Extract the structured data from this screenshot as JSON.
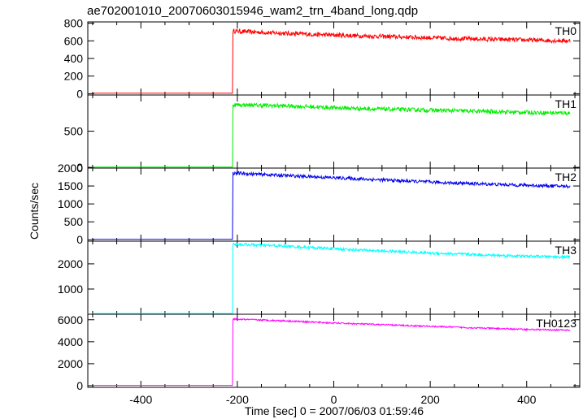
{
  "chart_data": {
    "type": "line",
    "title": "ae702001010_20070603015946_wam2_trn_4band_long.qdp",
    "xlabel": "Time [sec] 0 = 2007/06/03 01:59:46",
    "ylabel": "Counts/sec",
    "xlim": [
      -510,
      510
    ],
    "x_ticks": [
      -400,
      -200,
      0,
      200,
      400
    ],
    "grid": false,
    "legend": "none",
    "series": [
      {
        "name": "TH0",
        "color": "#ff0000",
        "ylim": [
          -15,
          815
        ],
        "y_ticks": [
          0,
          200,
          400,
          600,
          800
        ],
        "pre_level": 5,
        "onset_x": -210,
        "segments": [
          [
            -205,
            710
          ],
          [
            -100,
            685
          ],
          [
            0,
            665
          ],
          [
            100,
            650
          ],
          [
            200,
            635
          ],
          [
            300,
            620
          ],
          [
            400,
            610
          ],
          [
            490,
            600
          ]
        ],
        "noise": 25
      },
      {
        "name": "TH1",
        "color": "#00ee00",
        "ylim": [
          -10,
          1000
        ],
        "y_ticks": [
          0,
          500
        ],
        "y_ticks_extra": [],
        "pre_level": 5,
        "onset_x": -210,
        "segments": [
          [
            -205,
            865
          ],
          [
            -100,
            850
          ],
          [
            0,
            825
          ],
          [
            100,
            805
          ],
          [
            200,
            790
          ],
          [
            300,
            775
          ],
          [
            400,
            760
          ],
          [
            490,
            750
          ]
        ],
        "noise": 28
      },
      {
        "name": "TH2",
        "color": "#0000ee",
        "ylim": [
          -40,
          2000
        ],
        "y_ticks": [
          0,
          500,
          1000,
          1500,
          2000
        ],
        "pre_level": 10,
        "onset_x": -210,
        "segments": [
          [
            -205,
            1860
          ],
          [
            -100,
            1790
          ],
          [
            0,
            1730
          ],
          [
            100,
            1670
          ],
          [
            200,
            1610
          ],
          [
            300,
            1560
          ],
          [
            400,
            1520
          ],
          [
            490,
            1490
          ]
        ],
        "noise": 45
      },
      {
        "name": "TH3",
        "color": "#00ffff",
        "ylim": [
          0,
          2900
        ],
        "y_ticks": [
          1000,
          2000
        ],
        "pre_level": 30,
        "onset_x": -210,
        "segments": [
          [
            -205,
            2780
          ],
          [
            -100,
            2700
          ],
          [
            0,
            2600
          ],
          [
            100,
            2510
          ],
          [
            200,
            2430
          ],
          [
            300,
            2360
          ],
          [
            400,
            2300
          ],
          [
            490,
            2270
          ]
        ],
        "noise": 55
      },
      {
        "name": "TH0123",
        "color": "#ff00ff",
        "ylim": [
          -150,
          6500
        ],
        "y_ticks": [
          0,
          2000,
          4000,
          6000
        ],
        "pre_level": 30,
        "onset_x": -210,
        "segments": [
          [
            -205,
            6050
          ],
          [
            -100,
            5900
          ],
          [
            0,
            5700
          ],
          [
            100,
            5550
          ],
          [
            200,
            5400
          ],
          [
            300,
            5250
          ],
          [
            400,
            5120
          ],
          [
            490,
            5050
          ]
        ],
        "noise": 70
      }
    ]
  }
}
